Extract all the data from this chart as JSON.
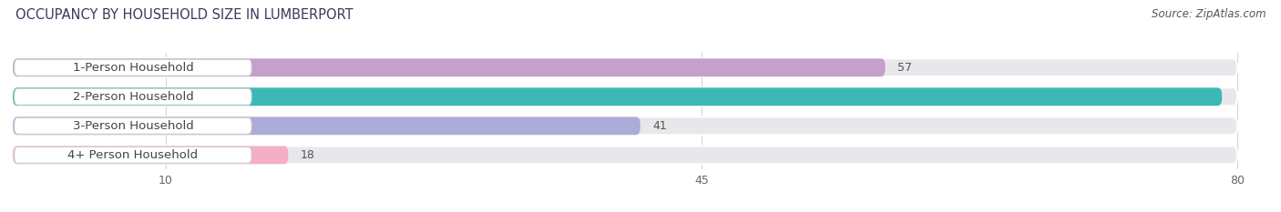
{
  "title": "OCCUPANCY BY HOUSEHOLD SIZE IN LUMBERPORT",
  "source": "Source: ZipAtlas.com",
  "categories": [
    "1-Person Household",
    "2-Person Household",
    "3-Person Household",
    "4+ Person Household"
  ],
  "values": [
    57,
    79,
    41,
    18
  ],
  "bar_colors": [
    "#c4a0cc",
    "#3ab8b4",
    "#abadd8",
    "#f4afc4"
  ],
  "bar_bg_color": "#e8e8ec",
  "max_value": 80,
  "x_ticks": [
    10,
    45,
    80
  ],
  "title_fontsize": 10.5,
  "source_fontsize": 8.5,
  "label_fontsize": 9.5,
  "value_fontsize": 9,
  "tick_fontsize": 9,
  "background_color": "#ffffff",
  "value_colors": [
    "#555555",
    "#ffffff",
    "#555555",
    "#555555"
  ]
}
